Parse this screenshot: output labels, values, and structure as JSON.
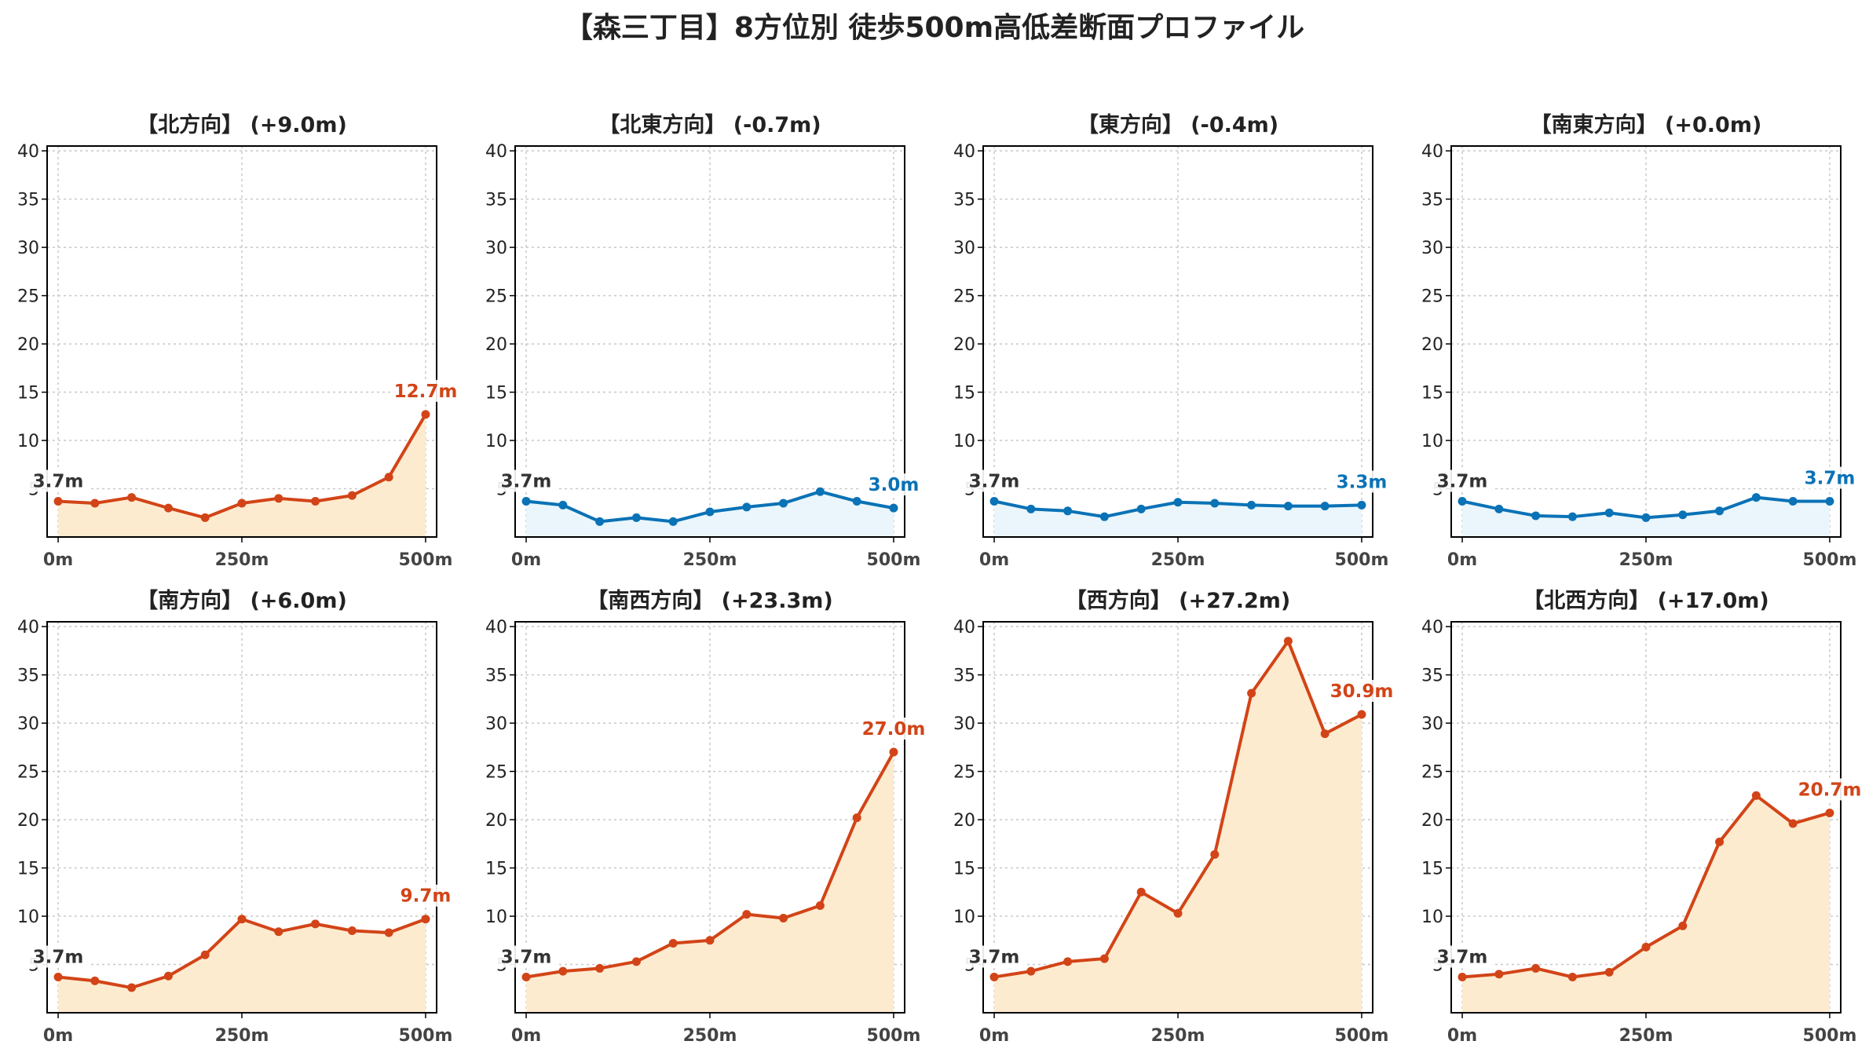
{
  "page": {
    "title": "【森三丁目】8方位別 徒歩500m高低差断面プロファイル"
  },
  "colors": {
    "up_line": "#d24417",
    "up_fill": "#fdebd0",
    "down_line": "#0a72b6",
    "down_fill": "#eaf6fb",
    "start_label": "#333333",
    "grid": "#c8c8c8"
  },
  "chart_data": [
    {
      "type": "area",
      "title": "【北方向】 (+9.0m)",
      "trend": "up",
      "x": [
        0,
        50,
        100,
        150,
        200,
        250,
        300,
        350,
        400,
        450,
        500
      ],
      "y": [
        3.7,
        3.5,
        4.1,
        3.0,
        2.0,
        3.5,
        4.0,
        3.7,
        4.3,
        6.2,
        12.7
      ],
      "start_label": "3.7m",
      "end_label": "12.7m",
      "xticks": [
        0,
        250,
        500
      ],
      "xtick_labels": [
        "0m",
        "250m",
        "500m"
      ],
      "yticks": [
        5,
        10,
        15,
        20,
        25,
        30,
        35,
        40
      ],
      "ytick_labels": [
        "5",
        "10",
        "15",
        "20",
        "25",
        "30",
        "35",
        "40"
      ],
      "xlim": [
        -15,
        515
      ],
      "ylim": [
        0,
        40.5
      ],
      "grid": true
    },
    {
      "type": "area",
      "title": "【北東方向】 (-0.7m)",
      "trend": "down",
      "x": [
        0,
        50,
        100,
        150,
        200,
        250,
        300,
        350,
        400,
        450,
        500
      ],
      "y": [
        3.7,
        3.3,
        1.6,
        2.0,
        1.6,
        2.6,
        3.1,
        3.5,
        4.7,
        3.7,
        3.0
      ],
      "start_label": "3.7m",
      "end_label": "3.0m",
      "xticks": [
        0,
        250,
        500
      ],
      "xtick_labels": [
        "0m",
        "250m",
        "500m"
      ],
      "yticks": [
        5,
        10,
        15,
        20,
        25,
        30,
        35,
        40
      ],
      "ytick_labels": [
        "5",
        "10",
        "15",
        "20",
        "25",
        "30",
        "35",
        "40"
      ],
      "xlim": [
        -15,
        515
      ],
      "ylim": [
        0,
        40.5
      ],
      "grid": true
    },
    {
      "type": "area",
      "title": "【東方向】 (-0.4m)",
      "trend": "down",
      "x": [
        0,
        50,
        100,
        150,
        200,
        250,
        300,
        350,
        400,
        450,
        500
      ],
      "y": [
        3.7,
        2.9,
        2.7,
        2.1,
        2.9,
        3.6,
        3.5,
        3.3,
        3.2,
        3.2,
        3.3
      ],
      "start_label": "3.7m",
      "end_label": "3.3m",
      "xticks": [
        0,
        250,
        500
      ],
      "xtick_labels": [
        "0m",
        "250m",
        "500m"
      ],
      "yticks": [
        5,
        10,
        15,
        20,
        25,
        30,
        35,
        40
      ],
      "ytick_labels": [
        "5",
        "10",
        "15",
        "20",
        "25",
        "30",
        "35",
        "40"
      ],
      "xlim": [
        -15,
        515
      ],
      "ylim": [
        0,
        40.5
      ],
      "grid": true
    },
    {
      "type": "area",
      "title": "【南東方向】 (+0.0m)",
      "trend": "down",
      "x": [
        0,
        50,
        100,
        150,
        200,
        250,
        300,
        350,
        400,
        450,
        500
      ],
      "y": [
        3.7,
        2.9,
        2.2,
        2.1,
        2.5,
        2.0,
        2.3,
        2.7,
        4.1,
        3.7,
        3.7
      ],
      "start_label": "3.7m",
      "end_label": "3.7m",
      "xticks": [
        0,
        250,
        500
      ],
      "xtick_labels": [
        "0m",
        "250m",
        "500m"
      ],
      "yticks": [
        5,
        10,
        15,
        20,
        25,
        30,
        35,
        40
      ],
      "ytick_labels": [
        "5",
        "10",
        "15",
        "20",
        "25",
        "30",
        "35",
        "40"
      ],
      "xlim": [
        -15,
        515
      ],
      "ylim": [
        0,
        40.5
      ],
      "grid": true
    },
    {
      "type": "area",
      "title": "【南方向】 (+6.0m)",
      "trend": "up",
      "x": [
        0,
        50,
        100,
        150,
        200,
        250,
        300,
        350,
        400,
        450,
        500
      ],
      "y": [
        3.7,
        3.3,
        2.6,
        3.8,
        6.0,
        9.7,
        8.4,
        9.2,
        8.5,
        8.3,
        9.7
      ],
      "start_label": "3.7m",
      "end_label": "9.7m",
      "xticks": [
        0,
        250,
        500
      ],
      "xtick_labels": [
        "0m",
        "250m",
        "500m"
      ],
      "yticks": [
        5,
        10,
        15,
        20,
        25,
        30,
        35,
        40
      ],
      "ytick_labels": [
        "5",
        "10",
        "15",
        "20",
        "25",
        "30",
        "35",
        "40"
      ],
      "xlim": [
        -15,
        515
      ],
      "ylim": [
        0,
        40.5
      ],
      "grid": true
    },
    {
      "type": "area",
      "title": "【南西方向】 (+23.3m)",
      "trend": "up",
      "x": [
        0,
        50,
        100,
        150,
        200,
        250,
        300,
        350,
        400,
        450,
        500
      ],
      "y": [
        3.7,
        4.3,
        4.6,
        5.3,
        7.2,
        7.5,
        10.2,
        9.8,
        11.1,
        20.2,
        27.0
      ],
      "start_label": "3.7m",
      "end_label": "27.0m",
      "xticks": [
        0,
        250,
        500
      ],
      "xtick_labels": [
        "0m",
        "250m",
        "500m"
      ],
      "yticks": [
        5,
        10,
        15,
        20,
        25,
        30,
        35,
        40
      ],
      "ytick_labels": [
        "5",
        "10",
        "15",
        "20",
        "25",
        "30",
        "35",
        "40"
      ],
      "xlim": [
        -15,
        515
      ],
      "ylim": [
        0,
        40.5
      ],
      "grid": true
    },
    {
      "type": "area",
      "title": "【西方向】 (+27.2m)",
      "trend": "up",
      "x": [
        0,
        50,
        100,
        150,
        200,
        250,
        300,
        350,
        400,
        450,
        500
      ],
      "y": [
        3.7,
        4.3,
        5.3,
        5.6,
        12.5,
        10.3,
        16.4,
        33.1,
        38.5,
        28.9,
        30.9
      ],
      "start_label": "3.7m",
      "end_label": "30.9m",
      "xticks": [
        0,
        250,
        500
      ],
      "xtick_labels": [
        "0m",
        "250m",
        "500m"
      ],
      "yticks": [
        5,
        10,
        15,
        20,
        25,
        30,
        35,
        40
      ],
      "ytick_labels": [
        "5",
        "10",
        "15",
        "20",
        "25",
        "30",
        "35",
        "40"
      ],
      "xlim": [
        -15,
        515
      ],
      "ylim": [
        0,
        40.5
      ],
      "grid": true
    },
    {
      "type": "area",
      "title": "【北西方向】 (+17.0m)",
      "trend": "up",
      "x": [
        0,
        50,
        100,
        150,
        200,
        250,
        300,
        350,
        400,
        450,
        500
      ],
      "y": [
        3.7,
        4.0,
        4.6,
        3.7,
        4.2,
        6.8,
        9.0,
        17.7,
        22.5,
        19.6,
        20.7
      ],
      "start_label": "3.7m",
      "end_label": "20.7m",
      "xticks": [
        0,
        250,
        500
      ],
      "xtick_labels": [
        "0m",
        "250m",
        "500m"
      ],
      "yticks": [
        5,
        10,
        15,
        20,
        25,
        30,
        35,
        40
      ],
      "ytick_labels": [
        "5",
        "10",
        "15",
        "20",
        "25",
        "30",
        "35",
        "40"
      ],
      "xlim": [
        -15,
        515
      ],
      "ylim": [
        0,
        40.5
      ],
      "grid": true
    }
  ]
}
